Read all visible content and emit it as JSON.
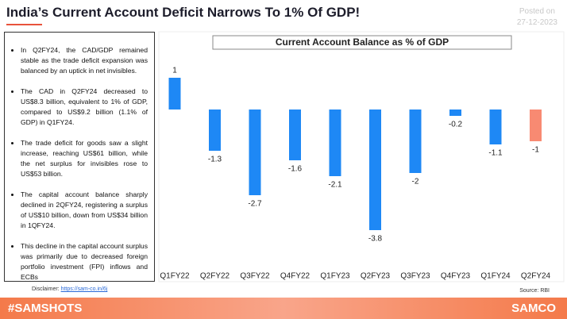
{
  "header": {
    "title": "India’s Current Account Deficit Narrows To 1% Of GDP!",
    "posted_label": "Posted on",
    "posted_date": "27-12-2023"
  },
  "bullets": [
    "In Q2FY24, the CAD/GDP remained stable as the trade deficit expansion was balanced by an uptick in net invisibles.",
    "The CAD in Q2FY24 decreased to US$8.3 billion, equivalent to 1% of GDP, compared to US$9.2 billion (1.1% of GDP) in Q1FY24.",
    "The trade deficit for goods saw a slight increase, reaching US$61 billion, while the net surplus for invisibles rose to US$53 billion.",
    "The capital account balance sharply declined in 2QFY24, registering a surplus of US$10 billion, down from US$34 billion in 1QFY24.",
    "This decline in the capital account surplus was primarily due to decreased foreign portfolio investment (FPI) inflows and ECBs"
  ],
  "chart_data": {
    "type": "bar",
    "title": "Current Account Balance as % of GDP",
    "categories": [
      "Q1FY22",
      "Q2FY22",
      "Q3FY22",
      "Q4FY22",
      "Q1FY23",
      "Q2FY23",
      "Q3FY23",
      "Q4FY23",
      "Q1FY24",
      "Q2FY24"
    ],
    "values": [
      1,
      -1.3,
      -2.7,
      -1.6,
      -2.1,
      -3.8,
      -2,
      -0.2,
      -1.1,
      -1
    ],
    "colors": [
      "#1e88f5",
      "#1e88f5",
      "#1e88f5",
      "#1e88f5",
      "#1e88f5",
      "#1e88f5",
      "#1e88f5",
      "#1e88f5",
      "#1e88f5",
      "#f88a72"
    ]
  },
  "footer": {
    "disclaimer_label": "Disclaimer:",
    "disclaimer_link": "https://sam-co.in/6j",
    "source": "Source: RBI",
    "hashtag": "#SAMSHOTS",
    "brand": "SAMCO"
  }
}
